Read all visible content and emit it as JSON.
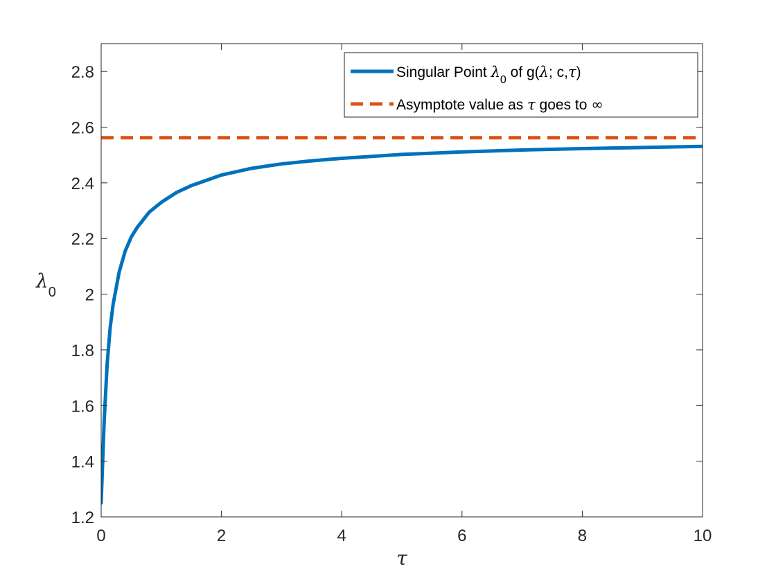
{
  "chart_data": {
    "type": "line",
    "title": "",
    "xlabel": "τ",
    "ylabel": {
      "symbol": "λ",
      "subscript": "0"
    },
    "xlim": [
      0,
      10
    ],
    "ylim": [
      1.2,
      2.9
    ],
    "xticks": [
      0,
      2,
      4,
      6,
      8,
      10
    ],
    "yticks": [
      1.2,
      1.4,
      1.6,
      1.8,
      2.0,
      2.2,
      2.4,
      2.6,
      2.8
    ],
    "xtick_labels": [
      "0",
      "2",
      "4",
      "6",
      "8",
      "10"
    ],
    "ytick_labels": [
      "1.2",
      "1.4",
      "1.6",
      "1.8",
      "2",
      "2.2",
      "2.4",
      "2.6",
      "2.8"
    ],
    "grid": false,
    "legend_position": "top-right",
    "series": [
      {
        "name": "Singular Point λ0 of g(λ; c,τ)",
        "name_parts": [
          "Singular Point ",
          "λ",
          "0",
          " of g(",
          "λ",
          "; c,",
          "τ",
          ")"
        ],
        "style": "solid",
        "color": "#0072BD",
        "x": [
          0.0,
          0.05,
          0.1,
          0.15,
          0.2,
          0.3,
          0.4,
          0.5,
          0.6,
          0.8,
          1.0,
          1.25,
          1.5,
          2.0,
          2.5,
          3.0,
          3.5,
          4.0,
          5.0,
          6.0,
          7.0,
          8.0,
          9.0,
          10.0
        ],
        "y": [
          1.25,
          1.545,
          1.75,
          1.88,
          1.965,
          2.08,
          2.155,
          2.205,
          2.24,
          2.295,
          2.33,
          2.365,
          2.39,
          2.428,
          2.452,
          2.468,
          2.479,
          2.488,
          2.502,
          2.511,
          2.518,
          2.523,
          2.527,
          2.531
        ]
      },
      {
        "name": "Asymptote value as τ goes to ∞",
        "name_parts": [
          "Asymptote value as ",
          "τ",
          " goes to ",
          "∞"
        ],
        "style": "dashed",
        "color": "#D95319",
        "x": [
          0,
          10
        ],
        "y": [
          2.562,
          2.562
        ]
      }
    ]
  }
}
